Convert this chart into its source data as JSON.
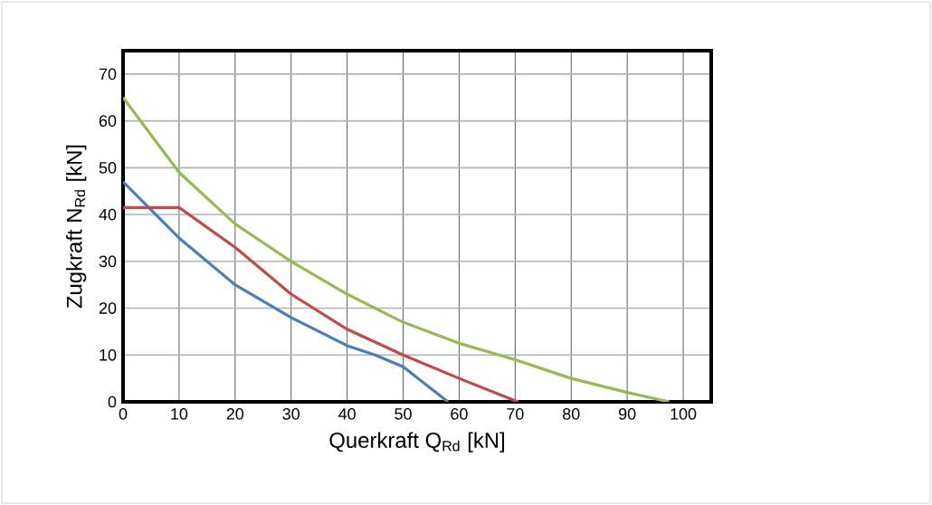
{
  "chart_data": {
    "type": "line",
    "xlabel": "Querkraft Q$_{Rd}$ [kN]",
    "ylabel": "Zugkraft N$_{Rd}$ [kN]",
    "xlim": [
      0,
      105
    ],
    "ylim": [
      0,
      75
    ],
    "xticks": [
      0,
      10,
      20,
      30,
      40,
      50,
      60,
      70,
      80,
      90,
      100
    ],
    "yticks": [
      0,
      10,
      20,
      30,
      40,
      50,
      60,
      70
    ],
    "grid": true,
    "series": [
      {
        "color": "#4a7ebb",
        "x": [
          0,
          10,
          20,
          25,
          30,
          40,
          45,
          50,
          58
        ],
        "values": [
          47,
          35,
          25,
          21.5,
          18,
          12,
          10,
          7.5,
          0
        ]
      },
      {
        "color": "#be4b48",
        "x": [
          0,
          10,
          20,
          30,
          40,
          50,
          60,
          70.5
        ],
        "values": [
          41.5,
          41.5,
          33,
          23,
          15.5,
          10,
          5,
          0
        ]
      },
      {
        "color": "#98b954",
        "x": [
          0,
          10,
          20,
          30,
          40,
          50,
          60,
          70,
          80,
          90,
          97.5
        ],
        "values": [
          65,
          49,
          38,
          30,
          23,
          17,
          12.5,
          9,
          5,
          2,
          0
        ]
      }
    ]
  }
}
